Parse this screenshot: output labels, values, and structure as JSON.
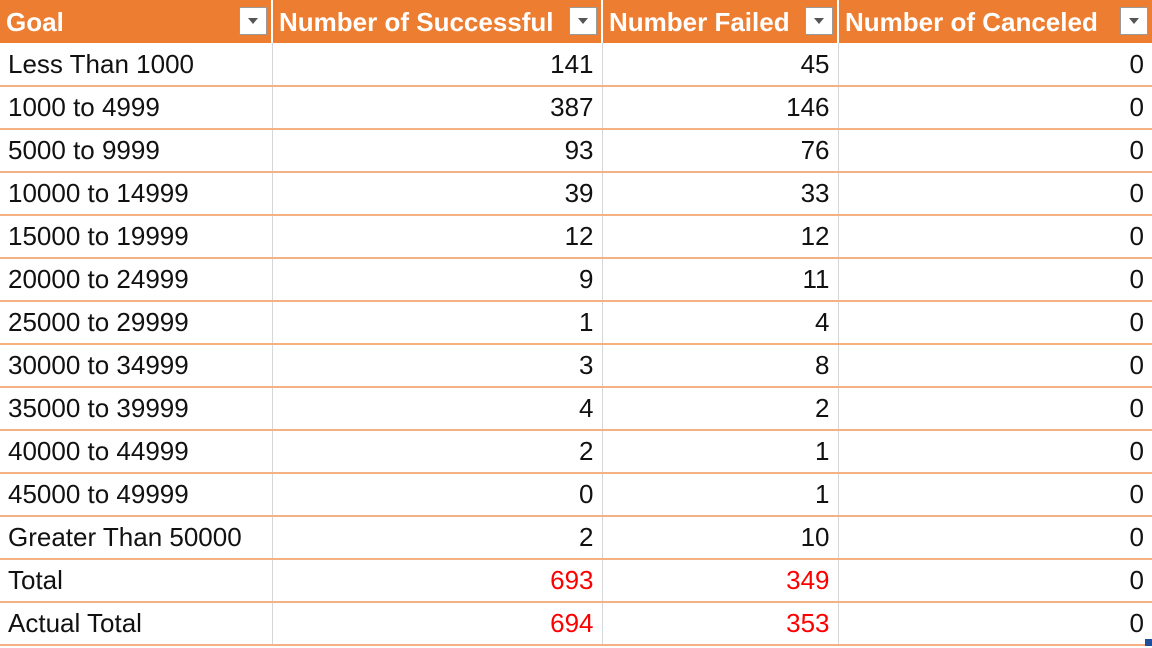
{
  "headers": [
    "Goal",
    "Number of Successful",
    "Number Failed",
    "Number of Canceled"
  ],
  "rows": [
    {
      "goal": "Less Than 1000",
      "successful": "141",
      "failed": "45",
      "canceled": "0"
    },
    {
      "goal": "1000 to 4999",
      "successful": "387",
      "failed": "146",
      "canceled": "0"
    },
    {
      "goal": "5000 to 9999",
      "successful": "93",
      "failed": "76",
      "canceled": "0"
    },
    {
      "goal": "10000 to 14999",
      "successful": "39",
      "failed": "33",
      "canceled": "0"
    },
    {
      "goal": "15000 to 19999",
      "successful": "12",
      "failed": "12",
      "canceled": "0"
    },
    {
      "goal": "20000 to 24999",
      "successful": "9",
      "failed": "11",
      "canceled": "0"
    },
    {
      "goal": "25000 to 29999",
      "successful": "1",
      "failed": "4",
      "canceled": "0"
    },
    {
      "goal": "30000 to 34999",
      "successful": "3",
      "failed": "8",
      "canceled": "0"
    },
    {
      "goal": "35000 to 39999",
      "successful": "4",
      "failed": "2",
      "canceled": "0"
    },
    {
      "goal": "40000 to 44999",
      "successful": "2",
      "failed": "1",
      "canceled": "0"
    },
    {
      "goal": "45000 to 49999",
      "successful": "0",
      "failed": "1",
      "canceled": "0"
    },
    {
      "goal": "Greater Than 50000",
      "successful": "2",
      "failed": "10",
      "canceled": "0"
    },
    {
      "goal": "Total",
      "successful": "693",
      "failed": "349",
      "canceled": "0"
    },
    {
      "goal": "Actual Total",
      "successful": "694",
      "failed": "353",
      "canceled": "0"
    }
  ],
  "colors": {
    "header_bg": "#ed7d31",
    "row_border": "#f4b183",
    "total_text": "#ff0000"
  },
  "icons": {
    "filter": "filter-dropdown-icon"
  }
}
